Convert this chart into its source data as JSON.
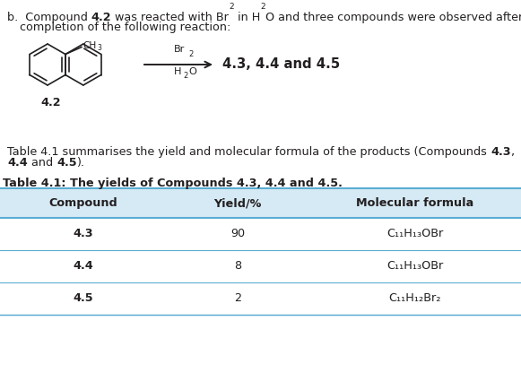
{
  "bg_color": "#ffffff",
  "text_color": "#231f20",
  "table_title": "Table 4.1: The yields of Compounds 4.3, 4.4 and 4.5.",
  "table_header": [
    "Compound",
    "Yield/%",
    "Molecular formula"
  ],
  "table_rows": [
    [
      "4.3",
      "90",
      "C₁₁H₁₃OBr"
    ],
    [
      "4.4",
      "8",
      "C₁₁H₁₃OBr"
    ],
    [
      "4.5",
      "2",
      "C₁₁H₁₂Br₂"
    ]
  ],
  "table_header_bg": "#d6eaf5",
  "table_row_bg": "#ffffff",
  "table_border_color": "#5badd3",
  "figsize": [
    5.81,
    4.16
  ],
  "dpi": 100
}
